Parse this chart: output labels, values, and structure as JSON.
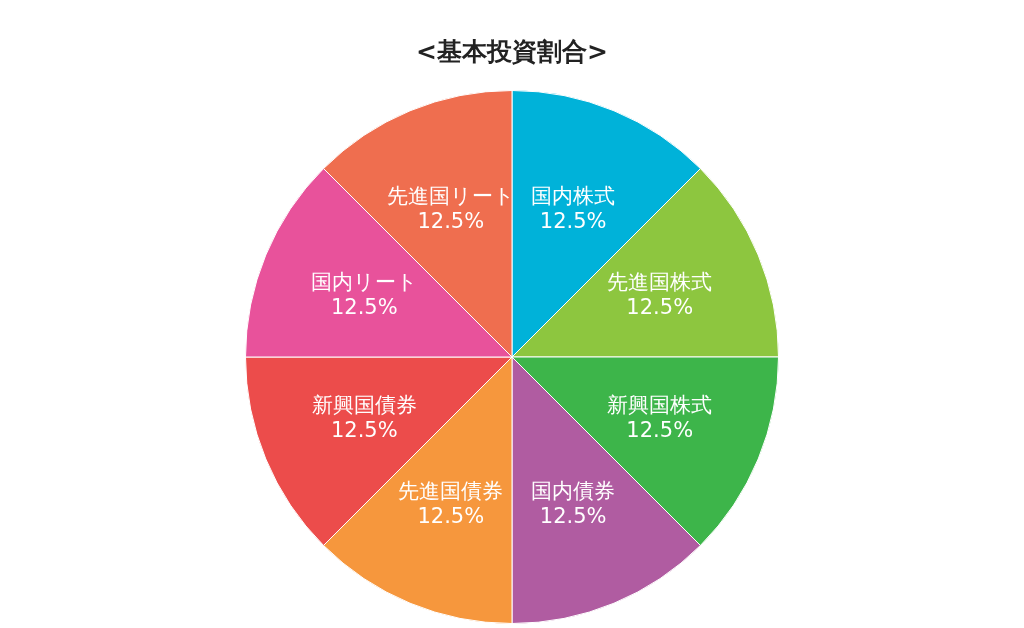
{
  "chart_data": {
    "type": "pie",
    "title": "<基本投資割合>",
    "categories": [
      "国内株式",
      "先進国株式",
      "新興国株式",
      "国内債券",
      "先進国債券",
      "新興国債券",
      "国内リート",
      "先進国リート"
    ],
    "values": [
      12.5,
      12.5,
      12.5,
      12.5,
      12.5,
      12.5,
      12.5,
      12.5
    ],
    "value_labels": [
      "12.5%",
      "12.5%",
      "12.5%",
      "12.5%",
      "12.5%",
      "12.5%",
      "12.5%",
      "12.5%"
    ],
    "colors": [
      "#00b2d9",
      "#8dc63f",
      "#3db54a",
      "#b05ca1",
      "#f6973d",
      "#ec4c4b",
      "#e8529b",
      "#ef6e4f"
    ],
    "legend": false
  }
}
